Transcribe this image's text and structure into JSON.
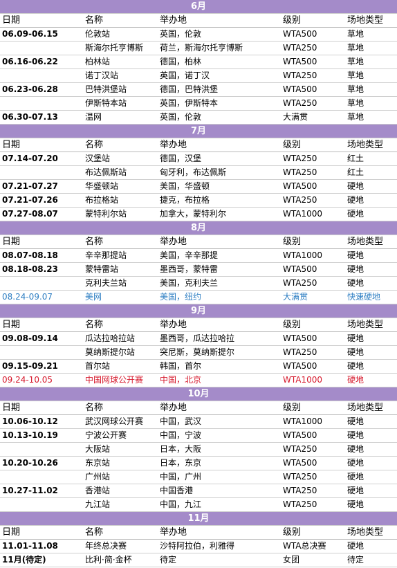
{
  "header": {
    "date": "日期",
    "name": "名称",
    "venue": "举办地",
    "level": "级别",
    "surface": "场地类型"
  },
  "months": [
    {
      "label": "6月",
      "rows": [
        {
          "date": "06.09-06.15",
          "name": "伦敦站",
          "venue": "英国，伦敦",
          "level": "WTA500",
          "surface": "草地"
        },
        {
          "date": "",
          "name": "斯海尔托亨博斯",
          "venue": "荷兰，斯海尔托亨博斯",
          "level": "WTA250",
          "surface": "草地"
        },
        {
          "date": "06.16-06.22",
          "name": "柏林站",
          "venue": "德国，柏林",
          "level": "WTA500",
          "surface": "草地"
        },
        {
          "date": "",
          "name": "诺丁汉站",
          "venue": "英国，诺丁汉",
          "level": "WTA250",
          "surface": "草地"
        },
        {
          "date": "06.23-06.28",
          "name": "巴特洪堡站",
          "venue": "德国，巴特洪堡",
          "level": "WTA500",
          "surface": "草地"
        },
        {
          "date": "",
          "name": "伊斯特本站",
          "venue": "英国，伊斯特本",
          "level": "WTA250",
          "surface": "草地"
        },
        {
          "date": "06.30-07.13",
          "name": "温网",
          "venue": "英国，伦敦",
          "level": "大满贯",
          "surface": "草地"
        }
      ]
    },
    {
      "label": "7月",
      "rows": [
        {
          "date": "07.14-07.20",
          "name": "汉堡站",
          "venue": "德国，汉堡",
          "level": "WTA250",
          "surface": "红土"
        },
        {
          "date": "",
          "name": "布达佩斯站",
          "venue": "匈牙利，布达佩斯",
          "level": "WTA250",
          "surface": "红土"
        },
        {
          "date": "07.21-07.27",
          "name": "华盛顿站",
          "venue": "美国，华盛顿",
          "level": "WTA500",
          "surface": "硬地"
        },
        {
          "date": "07.21-07.26",
          "name": "布拉格站",
          "venue": "捷克，布拉格",
          "level": "WTA250",
          "surface": "硬地"
        },
        {
          "date": "07.27-08.07",
          "name": "蒙特利尔站",
          "venue": "加拿大，蒙特利尔",
          "level": "WTA1000",
          "surface": "硬地"
        }
      ]
    },
    {
      "label": "8月",
      "rows": [
        {
          "date": "08.07-08.18",
          "name": "辛辛那提站",
          "venue": "美国，辛辛那提",
          "level": "WTA1000",
          "surface": "硬地"
        },
        {
          "date": "08.18-08.23",
          "name": "蒙特雷站",
          "venue": "墨西哥，蒙特雷",
          "level": "WTA500",
          "surface": "硬地"
        },
        {
          "date": "",
          "name": "克利夫兰站",
          "venue": "美国，克利夫兰",
          "level": "WTA250",
          "surface": "硬地"
        },
        {
          "date": "08.24-09.07",
          "name": "美网",
          "venue": "美国，纽约",
          "level": "大满贯",
          "surface": "快速硬地",
          "highlight": "blue"
        }
      ]
    },
    {
      "label": "9月",
      "rows": [
        {
          "date": "09.08-09.14",
          "name": "瓜达拉哈拉站",
          "venue": "墨西哥，瓜达拉哈拉",
          "level": "WTA500",
          "surface": "硬地"
        },
        {
          "date": "",
          "name": "莫纳斯提尔站",
          "venue": "突尼斯，莫纳斯提尔",
          "level": "WTA250",
          "surface": "硬地"
        },
        {
          "date": "09.15-09.21",
          "name": "首尔站",
          "venue": "韩国，首尔",
          "level": "WTA500",
          "surface": "硬地"
        },
        {
          "date": "09.24-10.05",
          "name": "中国网球公开赛",
          "venue": "中国，北京",
          "level": "WTA1000",
          "surface": "硬地",
          "highlight": "red"
        }
      ]
    },
    {
      "label": "10月",
      "rows": [
        {
          "date": "10.06-10.12",
          "name": "武汉网球公开赛",
          "venue": "中国，武汉",
          "level": "WTA1000",
          "surface": "硬地"
        },
        {
          "date": "10.13-10.19",
          "name": "宁波公开赛",
          "venue": "中国，宁波",
          "level": "WTA500",
          "surface": "硬地"
        },
        {
          "date": "",
          "name": "大阪站",
          "venue": "日本，大阪",
          "level": "WTA250",
          "surface": "硬地"
        },
        {
          "date": "10.20-10.26",
          "name": "东京站",
          "venue": "日本，东京",
          "level": "WTA500",
          "surface": "硬地"
        },
        {
          "date": "",
          "name": "广州站",
          "venue": "中国，广州",
          "level": "WTA250",
          "surface": "硬地"
        },
        {
          "date": "10.27-11.02",
          "name": "香港站",
          "venue": "中国香港",
          "level": "WTA250",
          "surface": "硬地"
        },
        {
          "date": "",
          "name": "九江站",
          "venue": "中国，九江",
          "level": "WTA250",
          "surface": "硬地"
        }
      ]
    },
    {
      "label": "11月",
      "rows": [
        {
          "date": "11.01-11.08",
          "name": "年终总决赛",
          "venue": "沙特阿拉伯，利雅得",
          "level": "WTA总决赛",
          "surface": "硬地"
        },
        {
          "date": "11月(待定)",
          "name": "比利·简·金杯",
          "venue": "待定",
          "level": "女团",
          "surface": "待定"
        }
      ]
    }
  ]
}
